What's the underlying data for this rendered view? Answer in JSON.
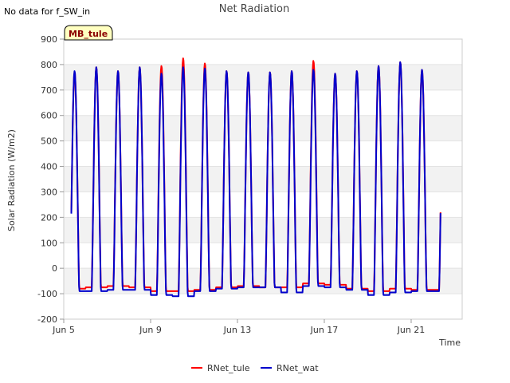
{
  "notice": "No data for f_SW_in",
  "badge": "MB_tule",
  "chart_data": {
    "type": "line",
    "title": "Net Radiation",
    "xlabel": "Time",
    "ylabel": "Solar Radiation (W/m2)",
    "xlim": [
      5.0,
      23.35
    ],
    "ylim": [
      -200,
      900
    ],
    "y_ticks": [
      -200,
      -100,
      0,
      100,
      200,
      300,
      400,
      500,
      600,
      700,
      800,
      900
    ],
    "x_ticks": [
      {
        "day": 5,
        "label": "Jun 5"
      },
      {
        "day": 9,
        "label": "Jun 9"
      },
      {
        "day": 13,
        "label": "Jun 13"
      },
      {
        "day": 17,
        "label": "Jun 17"
      },
      {
        "day": 21,
        "label": "Jun 21"
      }
    ],
    "grid": true,
    "legend_position": "bottom-center",
    "series": [
      {
        "name": "RNet_tule",
        "color": "#ff0000",
        "daily_peak": [
          770,
          790,
          775,
          790,
          795,
          825,
          805,
          775,
          770,
          770,
          775,
          815,
          765,
          775,
          795,
          810,
          780
        ],
        "night_min": [
          -80,
          -75,
          -70,
          -75,
          -90,
          -90,
          -85,
          -75,
          -70,
          -75,
          -75,
          -60,
          -65,
          -80,
          -90,
          -80,
          -85
        ]
      },
      {
        "name": "RNet_wat",
        "color": "#0000cc",
        "daily_peak": [
          775,
          790,
          775,
          790,
          765,
          790,
          785,
          775,
          770,
          770,
          775,
          780,
          765,
          775,
          795,
          810,
          780
        ],
        "night_min": [
          -90,
          -90,
          -85,
          -85,
          -105,
          -110,
          -90,
          -80,
          -75,
          -75,
          -95,
          -70,
          -75,
          -85,
          -105,
          -95,
          -90
        ]
      }
    ]
  }
}
